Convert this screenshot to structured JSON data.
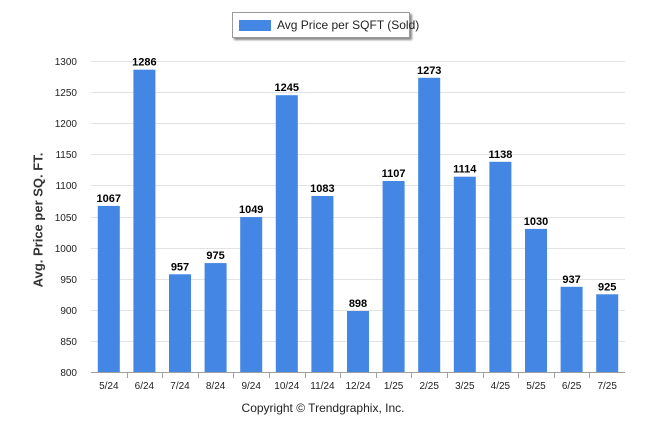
{
  "legend": {
    "label": "Avg Price per SQFT (Sold)"
  },
  "footer": {
    "copyright": "Copyright © Trendgraphix, Inc."
  },
  "colors": {
    "bar": "#4386e4",
    "grid": "#e3e3e3",
    "axis": "#a0a0a0",
    "text": "#222222"
  },
  "chart_data": {
    "type": "bar",
    "title": "",
    "xlabel": "",
    "ylabel": "Avg. Price per SQ. FT.",
    "categories": [
      "5/24",
      "6/24",
      "7/24",
      "8/24",
      "9/24",
      "10/24",
      "11/24",
      "12/24",
      "1/25",
      "2/25",
      "3/25",
      "4/25",
      "5/25",
      "6/25",
      "7/25"
    ],
    "series": [
      {
        "name": "Avg Price per SQFT (Sold)",
        "values": [
          1067,
          1286,
          957,
          975,
          1049,
          1245,
          1083,
          898,
          1107,
          1273,
          1114,
          1138,
          1030,
          937,
          925
        ]
      }
    ],
    "ylim": [
      800,
      1300
    ],
    "yticks": [
      800,
      850,
      900,
      950,
      1000,
      1050,
      1100,
      1150,
      1200,
      1250,
      1300
    ],
    "grid": true,
    "legend_position": "top-center",
    "data_labels": true
  }
}
